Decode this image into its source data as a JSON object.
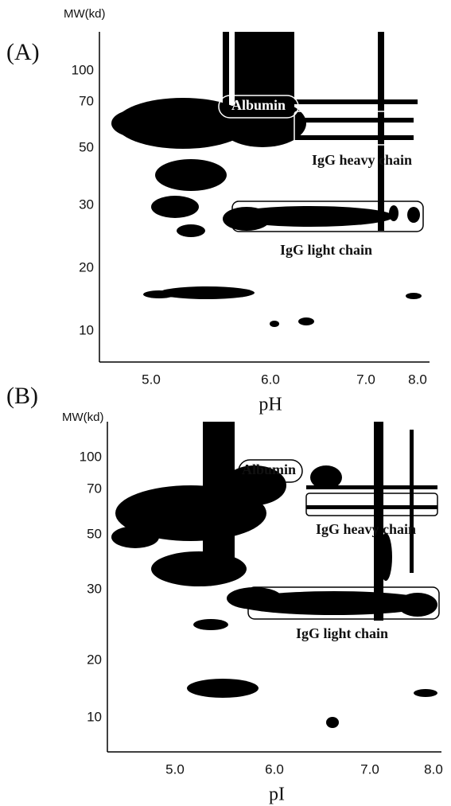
{
  "panels": [
    {
      "label": "(A)",
      "y_axis_label": "MW(kd)",
      "y_ticks": [
        "100",
        "70",
        "50",
        "30",
        "20",
        "10"
      ],
      "x_ticks": [
        "5.0",
        "6.0",
        "7.0",
        "8.0"
      ],
      "x_axis_label": "pH",
      "annotations": [
        "Albumin",
        "IgG heavy chain",
        "IgG light chain"
      ]
    },
    {
      "label": "(B)",
      "y_axis_label": "MW(kd)",
      "y_ticks": [
        "100",
        "70",
        "50",
        "30",
        "20",
        "10"
      ],
      "x_ticks": [
        "5.0",
        "6.0",
        "7.0",
        "8.0"
      ],
      "x_axis_label": "pI",
      "annotations": [
        "Albumin",
        "IgG heavy chain",
        "IgG light chain"
      ]
    }
  ]
}
